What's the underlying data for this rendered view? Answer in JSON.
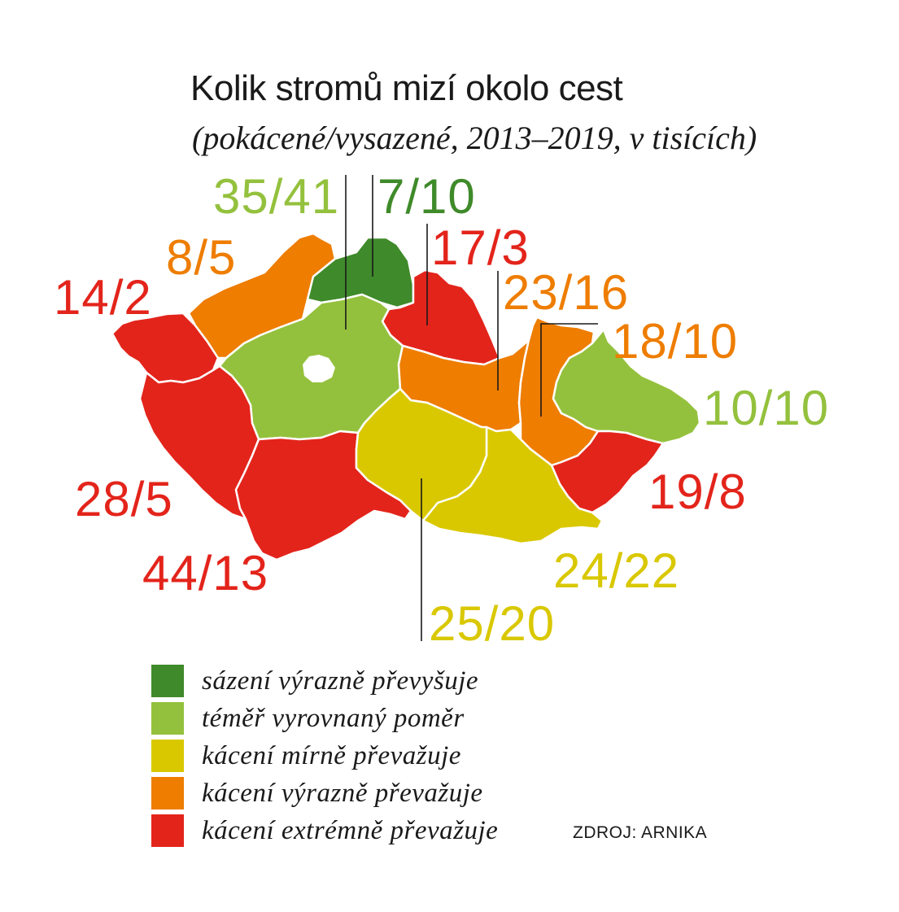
{
  "title": "Kolik stromů mizí okolo cest",
  "subtitle": "(pokácené/vysazené, 2013–2019, v tisících)",
  "colors": {
    "dark_green": "#3f8a2a",
    "light_green": "#94c13d",
    "yellow": "#d9c800",
    "orange": "#ee7d00",
    "red": "#e3241b"
  },
  "regions": [
    {
      "label": "35/41",
      "category": "light_green"
    },
    {
      "label": "7/10",
      "category": "dark_green"
    },
    {
      "label": "8/5",
      "category": "orange"
    },
    {
      "label": "17/3",
      "category": "red"
    },
    {
      "label": "14/2",
      "category": "red"
    },
    {
      "label": "23/16",
      "category": "orange"
    },
    {
      "label": "18/10",
      "category": "orange"
    },
    {
      "label": "10/10",
      "category": "light_green"
    },
    {
      "label": "28/5",
      "category": "red"
    },
    {
      "label": "19/8",
      "category": "red"
    },
    {
      "label": "24/22",
      "category": "yellow"
    },
    {
      "label": "44/13",
      "category": "red"
    },
    {
      "label": "25/20",
      "category": "yellow"
    },
    {
      "label": "",
      "category": "light_green"
    }
  ],
  "legend": [
    {
      "text": "sázení výrazně převyšuje",
      "color": "dark_green"
    },
    {
      "text": "téměř vyrovnaný poměr",
      "color": "light_green"
    },
    {
      "text": "kácení mírně převažuje",
      "color": "yellow"
    },
    {
      "text": "kácení výrazně převažuje",
      "color": "orange"
    },
    {
      "text": "kácení extrémně převažuje",
      "color": "red"
    }
  ],
  "source": "ZDROJ: ARNIKA"
}
